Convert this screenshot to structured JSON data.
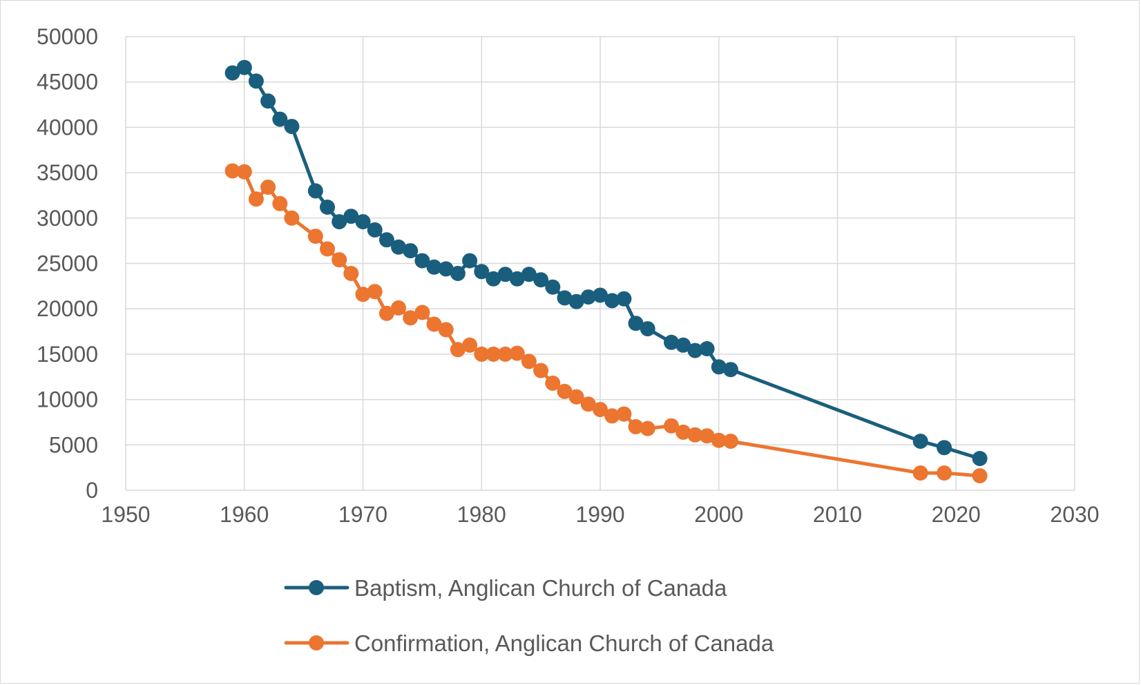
{
  "chart_data": {
    "type": "scatter",
    "title": "",
    "xlabel": "",
    "ylabel": "",
    "xlim": [
      1950,
      2030
    ],
    "ylim": [
      0,
      50000
    ],
    "x_ticks": [
      "1950",
      "1960",
      "1970",
      "1980",
      "1990",
      "2000",
      "2010",
      "2020",
      "2030"
    ],
    "y_ticks": [
      "0",
      "5000",
      "10000",
      "15000",
      "20000",
      "25000",
      "30000",
      "35000",
      "40000",
      "45000",
      "50000"
    ],
    "grid": true,
    "legend_position": "bottom",
    "lines_with_markers": true,
    "series": [
      {
        "name": "Baptism, Anglican Church of Canada",
        "color": "#1a5e7e",
        "x": [
          1959,
          1960,
          1961,
          1962,
          1963,
          1964,
          1966,
          1967,
          1968,
          1969,
          1970,
          1971,
          1972,
          1973,
          1974,
          1975,
          1976,
          1977,
          1978,
          1979,
          1980,
          1981,
          1982,
          1983,
          1984,
          1985,
          1986,
          1987,
          1988,
          1989,
          1990,
          1991,
          1992,
          1993,
          1994,
          1996,
          1997,
          1998,
          1999,
          2000,
          2001,
          2017,
          2019,
          2022
        ],
        "y": [
          46000,
          46600,
          45100,
          42900,
          40900,
          40100,
          33000,
          31200,
          29600,
          30200,
          29600,
          28700,
          27600,
          26800,
          26400,
          25300,
          24600,
          24400,
          23900,
          25300,
          24100,
          23300,
          23800,
          23300,
          23800,
          23200,
          22400,
          21200,
          20800,
          21300,
          21500,
          20900,
          21100,
          18400,
          17800,
          16300,
          16000,
          15400,
          15600,
          13600,
          13300,
          5400,
          4700,
          3500
        ]
      },
      {
        "name": "Confirmation, Anglican Church of Canada",
        "color": "#ec7530",
        "x": [
          1959,
          1960,
          1961,
          1962,
          1963,
          1964,
          1966,
          1967,
          1968,
          1969,
          1970,
          1971,
          1972,
          1973,
          1974,
          1975,
          1976,
          1977,
          1978,
          1979,
          1980,
          1981,
          1982,
          1983,
          1984,
          1985,
          1986,
          1987,
          1988,
          1989,
          1990,
          1991,
          1992,
          1993,
          1994,
          1996,
          1997,
          1998,
          1999,
          2000,
          2001,
          2017,
          2019,
          2022
        ],
        "y": [
          35200,
          35100,
          32100,
          33400,
          31600,
          30000,
          28000,
          26600,
          25400,
          23900,
          21600,
          21900,
          19500,
          20100,
          19000,
          19600,
          18300,
          17700,
          15500,
          16000,
          15000,
          15000,
          15000,
          15100,
          14200,
          13200,
          11800,
          10900,
          10300,
          9500,
          8900,
          8200,
          8400,
          7000,
          6800,
          7100,
          6400,
          6100,
          6000,
          5500,
          5400,
          1900,
          1900,
          1600
        ]
      }
    ]
  }
}
